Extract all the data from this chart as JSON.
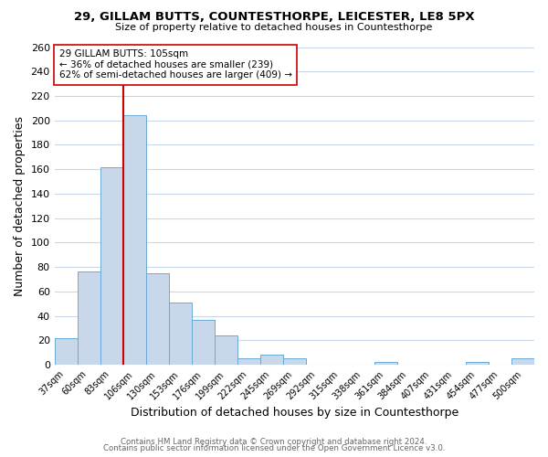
{
  "title": "29, GILLAM BUTTS, COUNTESTHORPE, LEICESTER, LE8 5PX",
  "subtitle": "Size of property relative to detached houses in Countesthorpe",
  "xlabel": "Distribution of detached houses by size in Countesthorpe",
  "ylabel": "Number of detached properties",
  "bin_labels": [
    "37sqm",
    "60sqm",
    "83sqm",
    "106sqm",
    "130sqm",
    "153sqm",
    "176sqm",
    "199sqm",
    "222sqm",
    "245sqm",
    "269sqm",
    "292sqm",
    "315sqm",
    "338sqm",
    "361sqm",
    "384sqm",
    "407sqm",
    "431sqm",
    "454sqm",
    "477sqm",
    "500sqm"
  ],
  "bar_heights": [
    22,
    76,
    162,
    204,
    75,
    51,
    37,
    24,
    5,
    8,
    5,
    0,
    0,
    0,
    2,
    0,
    0,
    0,
    2,
    0,
    5
  ],
  "bar_color": "#c8d8ea",
  "bar_edge_color": "#6aaad4",
  "vline_x_index": 3,
  "vline_color": "#cc0000",
  "annotation_line1": "29 GILLAM BUTTS: 105sqm",
  "annotation_line2": "← 36% of detached houses are smaller (239)",
  "annotation_line3": "62% of semi-detached houses are larger (409) →",
  "annotation_box_color": "#ffffff",
  "annotation_box_edge": "#cc0000",
  "ylim": [
    0,
    260
  ],
  "yticks": [
    0,
    20,
    40,
    60,
    80,
    100,
    120,
    140,
    160,
    180,
    200,
    220,
    240,
    260
  ],
  "footer_line1": "Contains HM Land Registry data © Crown copyright and database right 2024.",
  "footer_line2": "Contains public sector information licensed under the Open Government Licence v3.0.",
  "background_color": "#ffffff",
  "grid_color": "#c8d8e8"
}
